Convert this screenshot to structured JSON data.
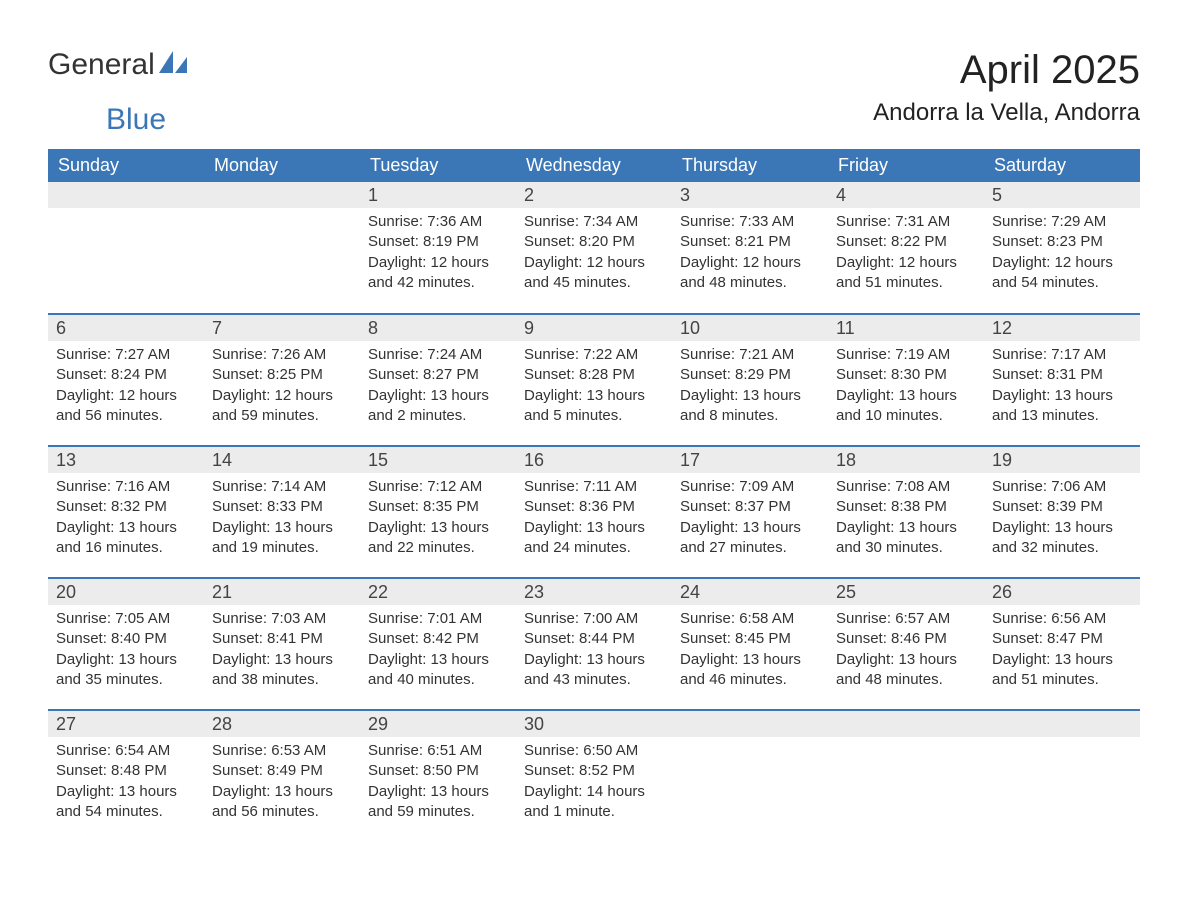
{
  "logo": {
    "word1": "General",
    "word2": "Blue"
  },
  "title": "April 2025",
  "location": "Andorra la Vella, Andorra",
  "colors": {
    "header_bg": "#3b77b6",
    "header_fg": "#ffffff",
    "daynum_bg": "#ececec",
    "text": "#333333",
    "rule": "#3b77b6"
  },
  "typography": {
    "title_fontsize": 40,
    "location_fontsize": 24,
    "header_fontsize": 18,
    "daynum_fontsize": 18,
    "body_fontsize": 15
  },
  "day_names": [
    "Sunday",
    "Monday",
    "Tuesday",
    "Wednesday",
    "Thursday",
    "Friday",
    "Saturday"
  ],
  "weeks": [
    [
      {
        "n": "",
        "sunrise": "",
        "sunset": "",
        "daylight": ""
      },
      {
        "n": "",
        "sunrise": "",
        "sunset": "",
        "daylight": ""
      },
      {
        "n": "1",
        "sunrise": "Sunrise: 7:36 AM",
        "sunset": "Sunset: 8:19 PM",
        "daylight": "Daylight: 12 hours and 42 minutes."
      },
      {
        "n": "2",
        "sunrise": "Sunrise: 7:34 AM",
        "sunset": "Sunset: 8:20 PM",
        "daylight": "Daylight: 12 hours and 45 minutes."
      },
      {
        "n": "3",
        "sunrise": "Sunrise: 7:33 AM",
        "sunset": "Sunset: 8:21 PM",
        "daylight": "Daylight: 12 hours and 48 minutes."
      },
      {
        "n": "4",
        "sunrise": "Sunrise: 7:31 AM",
        "sunset": "Sunset: 8:22 PM",
        "daylight": "Daylight: 12 hours and 51 minutes."
      },
      {
        "n": "5",
        "sunrise": "Sunrise: 7:29 AM",
        "sunset": "Sunset: 8:23 PM",
        "daylight": "Daylight: 12 hours and 54 minutes."
      }
    ],
    [
      {
        "n": "6",
        "sunrise": "Sunrise: 7:27 AM",
        "sunset": "Sunset: 8:24 PM",
        "daylight": "Daylight: 12 hours and 56 minutes."
      },
      {
        "n": "7",
        "sunrise": "Sunrise: 7:26 AM",
        "sunset": "Sunset: 8:25 PM",
        "daylight": "Daylight: 12 hours and 59 minutes."
      },
      {
        "n": "8",
        "sunrise": "Sunrise: 7:24 AM",
        "sunset": "Sunset: 8:27 PM",
        "daylight": "Daylight: 13 hours and 2 minutes."
      },
      {
        "n": "9",
        "sunrise": "Sunrise: 7:22 AM",
        "sunset": "Sunset: 8:28 PM",
        "daylight": "Daylight: 13 hours and 5 minutes."
      },
      {
        "n": "10",
        "sunrise": "Sunrise: 7:21 AM",
        "sunset": "Sunset: 8:29 PM",
        "daylight": "Daylight: 13 hours and 8 minutes."
      },
      {
        "n": "11",
        "sunrise": "Sunrise: 7:19 AM",
        "sunset": "Sunset: 8:30 PM",
        "daylight": "Daylight: 13 hours and 10 minutes."
      },
      {
        "n": "12",
        "sunrise": "Sunrise: 7:17 AM",
        "sunset": "Sunset: 8:31 PM",
        "daylight": "Daylight: 13 hours and 13 minutes."
      }
    ],
    [
      {
        "n": "13",
        "sunrise": "Sunrise: 7:16 AM",
        "sunset": "Sunset: 8:32 PM",
        "daylight": "Daylight: 13 hours and 16 minutes."
      },
      {
        "n": "14",
        "sunrise": "Sunrise: 7:14 AM",
        "sunset": "Sunset: 8:33 PM",
        "daylight": "Daylight: 13 hours and 19 minutes."
      },
      {
        "n": "15",
        "sunrise": "Sunrise: 7:12 AM",
        "sunset": "Sunset: 8:35 PM",
        "daylight": "Daylight: 13 hours and 22 minutes."
      },
      {
        "n": "16",
        "sunrise": "Sunrise: 7:11 AM",
        "sunset": "Sunset: 8:36 PM",
        "daylight": "Daylight: 13 hours and 24 minutes."
      },
      {
        "n": "17",
        "sunrise": "Sunrise: 7:09 AM",
        "sunset": "Sunset: 8:37 PM",
        "daylight": "Daylight: 13 hours and 27 minutes."
      },
      {
        "n": "18",
        "sunrise": "Sunrise: 7:08 AM",
        "sunset": "Sunset: 8:38 PM",
        "daylight": "Daylight: 13 hours and 30 minutes."
      },
      {
        "n": "19",
        "sunrise": "Sunrise: 7:06 AM",
        "sunset": "Sunset: 8:39 PM",
        "daylight": "Daylight: 13 hours and 32 minutes."
      }
    ],
    [
      {
        "n": "20",
        "sunrise": "Sunrise: 7:05 AM",
        "sunset": "Sunset: 8:40 PM",
        "daylight": "Daylight: 13 hours and 35 minutes."
      },
      {
        "n": "21",
        "sunrise": "Sunrise: 7:03 AM",
        "sunset": "Sunset: 8:41 PM",
        "daylight": "Daylight: 13 hours and 38 minutes."
      },
      {
        "n": "22",
        "sunrise": "Sunrise: 7:01 AM",
        "sunset": "Sunset: 8:42 PM",
        "daylight": "Daylight: 13 hours and 40 minutes."
      },
      {
        "n": "23",
        "sunrise": "Sunrise: 7:00 AM",
        "sunset": "Sunset: 8:44 PM",
        "daylight": "Daylight: 13 hours and 43 minutes."
      },
      {
        "n": "24",
        "sunrise": "Sunrise: 6:58 AM",
        "sunset": "Sunset: 8:45 PM",
        "daylight": "Daylight: 13 hours and 46 minutes."
      },
      {
        "n": "25",
        "sunrise": "Sunrise: 6:57 AM",
        "sunset": "Sunset: 8:46 PM",
        "daylight": "Daylight: 13 hours and 48 minutes."
      },
      {
        "n": "26",
        "sunrise": "Sunrise: 6:56 AM",
        "sunset": "Sunset: 8:47 PM",
        "daylight": "Daylight: 13 hours and 51 minutes."
      }
    ],
    [
      {
        "n": "27",
        "sunrise": "Sunrise: 6:54 AM",
        "sunset": "Sunset: 8:48 PM",
        "daylight": "Daylight: 13 hours and 54 minutes."
      },
      {
        "n": "28",
        "sunrise": "Sunrise: 6:53 AM",
        "sunset": "Sunset: 8:49 PM",
        "daylight": "Daylight: 13 hours and 56 minutes."
      },
      {
        "n": "29",
        "sunrise": "Sunrise: 6:51 AM",
        "sunset": "Sunset: 8:50 PM",
        "daylight": "Daylight: 13 hours and 59 minutes."
      },
      {
        "n": "30",
        "sunrise": "Sunrise: 6:50 AM",
        "sunset": "Sunset: 8:52 PM",
        "daylight": "Daylight: 14 hours and 1 minute."
      },
      {
        "n": "",
        "sunrise": "",
        "sunset": "",
        "daylight": ""
      },
      {
        "n": "",
        "sunrise": "",
        "sunset": "",
        "daylight": ""
      },
      {
        "n": "",
        "sunrise": "",
        "sunset": "",
        "daylight": ""
      }
    ]
  ]
}
